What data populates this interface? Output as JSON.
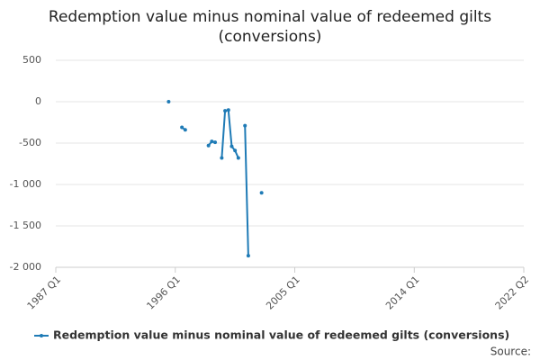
{
  "chart_data": {
    "type": "line",
    "title": "Redemption value minus nominal value of redeemed gilts (conversions)",
    "source": "Source:",
    "x": [
      "1995 Q3",
      "1995 Q4",
      "1996 Q3",
      "1996 Q4",
      "1997 Q1",
      "1998 Q3",
      "1998 Q4",
      "1999 Q1",
      "1999 Q2",
      "1999 Q3",
      "1999 Q4",
      "2000 Q1",
      "2000 Q2",
      "2000 Q3",
      "2000 Q4",
      "2001 Q1",
      "2001 Q2",
      "2001 Q3",
      "2001 Q4",
      "2002 Q3"
    ],
    "series": [
      {
        "name": "Redemption value minus nominal value of redeemed gilts (conversions)",
        "color": "#1f7bb6",
        "values": [
          0,
          null,
          -310,
          -340,
          null,
          -530,
          -480,
          -490,
          null,
          -680,
          -110,
          -100,
          -540,
          -590,
          -680,
          null,
          -290,
          -1860,
          null,
          -1100
        ]
      }
    ],
    "xlim": [
      "1987 Q1",
      "2022 Q2"
    ],
    "xticks": [
      "1987 Q1",
      "1996 Q1",
      "2005 Q1",
      "2014 Q1",
      "2022 Q2"
    ],
    "ylim": [
      -2000,
      500
    ],
    "yticks": [
      500,
      0,
      -500,
      {
        "value": -1000,
        "label": "-1 000"
      },
      {
        "value": -1500,
        "label": "-1 500"
      },
      {
        "value": -2000,
        "label": "-2 000"
      }
    ],
    "grid": true,
    "legend": "bottom"
  }
}
